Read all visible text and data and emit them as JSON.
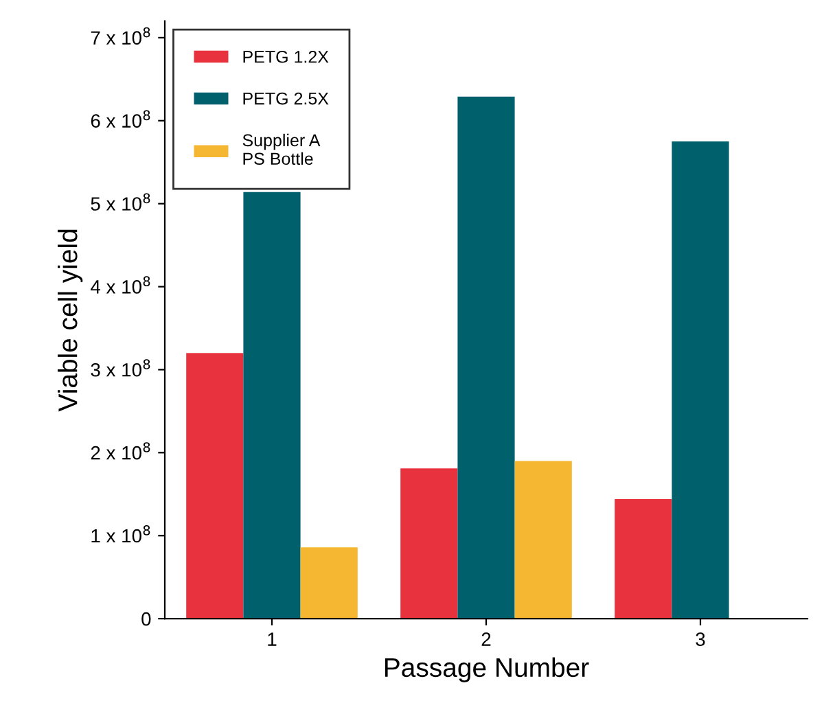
{
  "chart_data": {
    "type": "bar",
    "xlabel": "Passage Number",
    "ylabel": "Viable cell yield",
    "categories": [
      "1",
      "2",
      "3"
    ],
    "series": [
      {
        "name": "PETG 1.2X",
        "color": "#e8333f",
        "values": [
          320000000,
          181000000,
          144000000
        ]
      },
      {
        "name": "PETG 2.5X",
        "color": "#00606b",
        "values": [
          514000000,
          629000000,
          575000000
        ]
      },
      {
        "name": "Supplier A\nPS Bottle",
        "color": "#f5b731",
        "values": [
          86000000,
          190000000,
          null
        ]
      }
    ],
    "ylim": [
      0,
      720000000
    ],
    "yticks": [
      0,
      {
        "value": 100000000,
        "label": "1 x 10$^{8}$"
      },
      {
        "value": 200000000,
        "label": "2 x 10$^{8}$"
      },
      {
        "value": 300000000,
        "label": "3 x 10$^{8}$"
      },
      {
        "value": 400000000,
        "label": "4 x 10$^{8}$"
      },
      {
        "value": 500000000,
        "label": "5 x 10$^{8}$"
      },
      {
        "value": 600000000,
        "label": "6 x 10$^{8}$"
      },
      {
        "value": 700000000,
        "label": "7 x 10$^{8}$"
      }
    ],
    "grid": false,
    "legend": "top left"
  }
}
